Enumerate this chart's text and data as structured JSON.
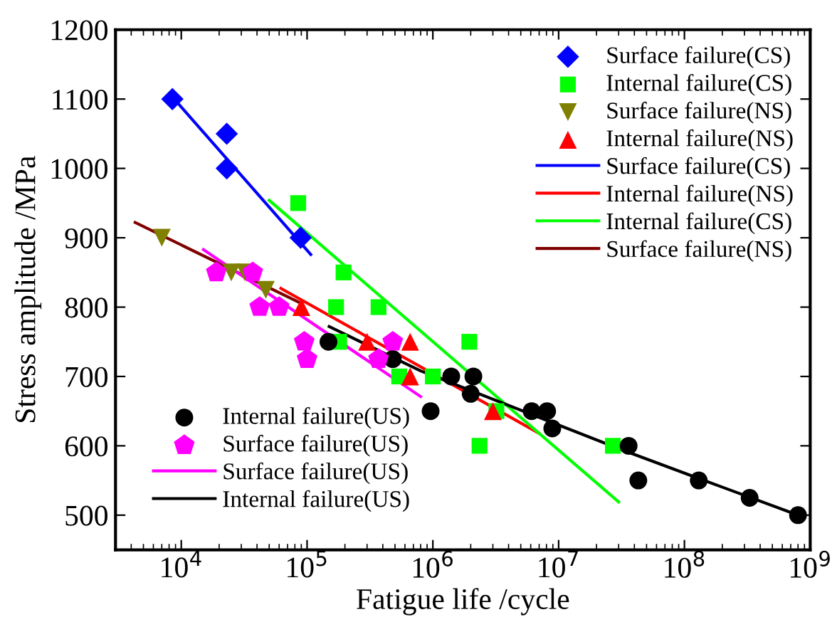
{
  "chart_data": {
    "type": "scatter",
    "xlabel": "Fatigue life /cycle",
    "ylabel": "Stress amplitude /MPa",
    "log": "x",
    "xlim": [
      3000,
      1000000000
    ],
    "xticks": [
      {
        "value": 10000,
        "label": "10$^{4}$"
      },
      {
        "value": 100000,
        "label": "10$^{5}$"
      },
      {
        "value": 1000000,
        "label": "10$^{6}$"
      },
      {
        "value": 10000000,
        "label": "10$^{7}$"
      },
      {
        "value": 100000000,
        "label": "10$^{8}$"
      },
      {
        "value": 1000000000,
        "label": "10$^{9}$"
      }
    ],
    "ylim": [
      450,
      1200
    ],
    "yticks": [
      500,
      600,
      700,
      800,
      900,
      1000,
      1100,
      1200
    ],
    "grid": false,
    "legend": "top right",
    "series": [
      {
        "name": "Surface failure(CS)",
        "color": "#0000ff",
        "marker": "diamond",
        "x": [
          8500,
          23000,
          23000,
          89000
        ],
        "values": [
          1100,
          1050,
          1000,
          900
        ]
      },
      {
        "name": "Internal failure(CS)",
        "color": "#00ff00",
        "marker": "square",
        "x": [
          85000,
          195000,
          170000,
          370000,
          180000,
          540000,
          1000000,
          1950000,
          2350000,
          3200000,
          27000000
        ],
        "values": [
          950,
          850,
          800,
          800,
          750,
          700,
          700,
          750,
          600,
          650,
          600
        ]
      },
      {
        "name": "Surface failure(NS)",
        "color": "#808000",
        "marker": "triangle_down",
        "x": [
          7000,
          25000,
          32000,
          47000
        ],
        "values": [
          900,
          850,
          850,
          825
        ]
      },
      {
        "name": "Internal failure(NS)",
        "color": "#ff0000",
        "marker": "triangle",
        "x": [
          90000,
          300000,
          660000,
          660000,
          3000000
        ],
        "values": [
          800,
          750,
          750,
          700,
          650
        ]
      },
      {
        "name": "Surface failure(CS)",
        "type": "line",
        "color": "#0000ff",
        "x": [
          9300,
          107000
        ],
        "values": [
          1095,
          876
        ]
      },
      {
        "name": "Internal failure(NS)",
        "type": "line",
        "color": "#ff0000",
        "x": [
          62000,
          7000000
        ],
        "values": [
          827,
          618
        ]
      },
      {
        "name": "Internal failure(CS)",
        "type": "line",
        "color": "#00ff00",
        "x": [
          50000,
          30000000
        ],
        "values": [
          954,
          519
        ]
      },
      {
        "name": "Surface failure(NS)",
        "type": "line",
        "color": "#800000",
        "x": [
          4300,
          91000
        ],
        "values": [
          922,
          805
        ]
      },
      {
        "name": "Internal failure(US)",
        "color": "#000000",
        "marker": "circle",
        "x": [
          148000,
          480000,
          960000,
          1400000,
          2100000,
          2000000,
          6100000,
          8100000,
          8900000,
          36000000,
          43000000,
          130000000,
          330000000,
          800000000
        ],
        "values": [
          750,
          725,
          650,
          700,
          700,
          675,
          650,
          650,
          625,
          600,
          550,
          550,
          525,
          500
        ]
      },
      {
        "name": "Surface failure(US)",
        "color": "#ff00ff",
        "x": [
          19000,
          37000,
          42000,
          60000,
          95000,
          100000,
          370000,
          480000
        ],
        "values": [
          850,
          850,
          800,
          800,
          750,
          725,
          725,
          750
        ]
      },
      {
        "name": "Surface failure(US)",
        "type": "line",
        "color": "#ff00ff",
        "x": [
          15000,
          800000
        ],
        "values": [
          883,
          671
        ]
      },
      {
        "name": "Internal failure(US)",
        "type": "line",
        "color": "#000000",
        "x": [
          150000,
          800000,
          31000000,
          130000000,
          800000000
        ],
        "values": [
          772,
          708,
          595,
          553,
          500
        ]
      }
    ]
  }
}
